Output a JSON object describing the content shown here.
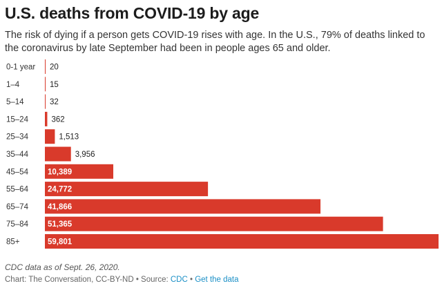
{
  "header": {
    "title": "U.S. deaths from COVID-19 by age",
    "subtitle": "The risk of dying if a person gets COVID-19 rises with age. In the U.S., 79% of deaths linked to the coronavirus by late September had been in people ages 65 and older."
  },
  "chart_data": {
    "type": "bar",
    "orientation": "horizontal",
    "categories": [
      "0-1 year",
      "1–4",
      "5–14",
      "15–24",
      "25–34",
      "35–44",
      "45–54",
      "55–64",
      "65–74",
      "75–84",
      "85+"
    ],
    "values": [
      20,
      15,
      32,
      362,
      1513,
      3956,
      10389,
      24772,
      41866,
      51365,
      59801
    ],
    "value_labels": [
      "20",
      "15",
      "32",
      "362",
      "1,513",
      "3,956",
      "10,389",
      "24,772",
      "41,866",
      "51,365",
      "59,801"
    ],
    "bar_color": "#d93a2b",
    "grid": false,
    "legend": "none"
  },
  "footer": {
    "note": "CDC data as of Sept. 26, 2020.",
    "credit_prefix": "Chart: The Conversation, CC-BY-ND • Source: ",
    "source_link": "CDC",
    "separator": " • ",
    "get_data_link": "Get the data"
  }
}
